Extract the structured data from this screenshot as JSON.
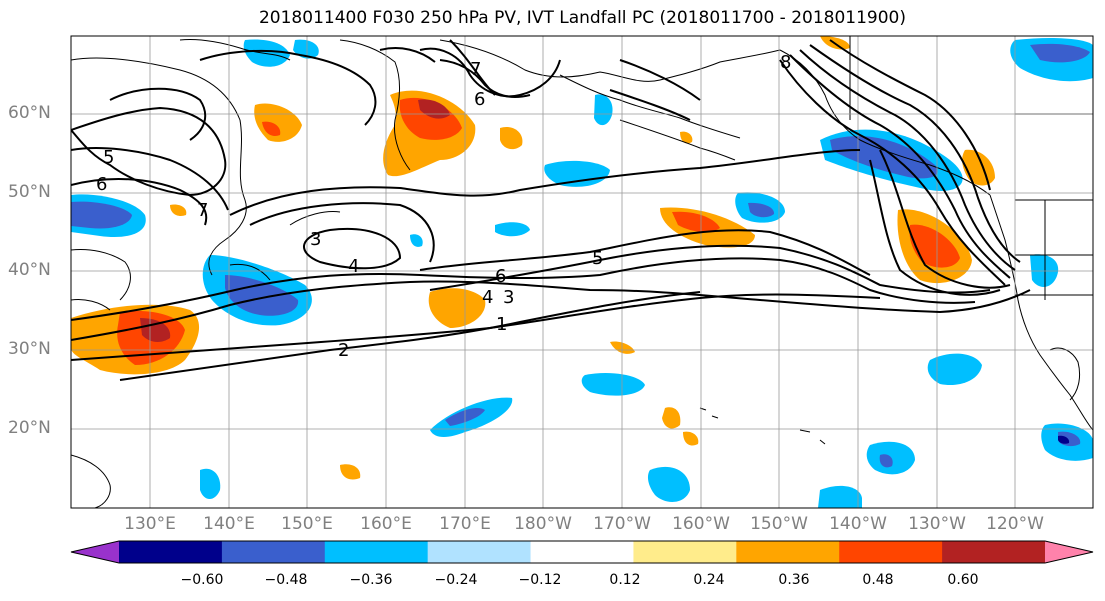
{
  "title": "2018011400 F030 250 hPa PV, IVT Landfall PC (2018011700 - 2018011900)",
  "lat_labels": [
    "60°N",
    "50°N",
    "40°N",
    "30°N",
    "20°N"
  ],
  "lon_labels": [
    "130°E",
    "140°E",
    "150°E",
    "160°E",
    "170°E",
    "180°W",
    "170°W",
    "160°W",
    "150°W",
    "140°W",
    "130°W",
    "120°W"
  ],
  "colorbar": {
    "tick_labels": [
      "−0.60",
      "−0.48",
      "−0.36",
      "−0.24",
      "−0.12",
      "0.12",
      "0.24",
      "0.36",
      "0.48",
      "0.60"
    ],
    "colors": [
      "#9932cc",
      "#00008b",
      "#3a5fcd",
      "#00bfff",
      "#b0e2ff",
      "#ffffff",
      "#ffec8b",
      "#ffa500",
      "#ff4500",
      "#b22222",
      "#ff82ab"
    ]
  },
  "contour_labels": [
    "1",
    "2",
    "3",
    "3",
    "4",
    "4",
    "5",
    "5",
    "6",
    "6",
    "6",
    "7",
    "7",
    "8"
  ]
}
